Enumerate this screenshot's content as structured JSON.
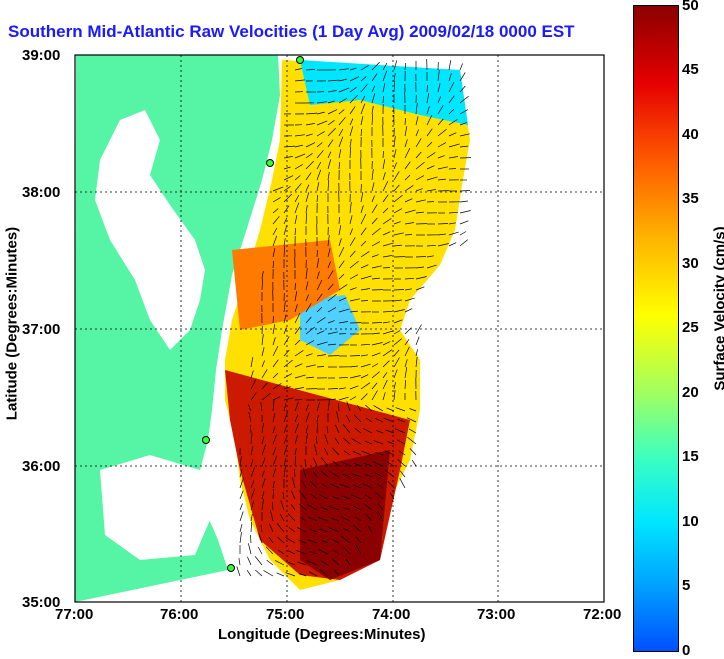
{
  "title": "Southern Mid-Atlantic Raw Velocities (1 Day Avg) 2009/02/18 0000 EST",
  "x_axis": {
    "label": "Longitude (Degrees:Minutes)",
    "ticks": [
      "77:00",
      "76:00",
      "75:00",
      "74:00",
      "73:00",
      "72:00"
    ]
  },
  "y_axis": {
    "label": "Latitude (Degrees:Minutes)",
    "ticks": [
      "39:00",
      "38:00",
      "37:00",
      "36:00",
      "35:00"
    ]
  },
  "colorbar": {
    "label": "Surface Velocity (cm/s)",
    "ticks": [
      "50",
      "45",
      "40",
      "35",
      "30",
      "25",
      "20",
      "15",
      "10",
      "5",
      "0"
    ]
  },
  "colors": {
    "land": "#55f5a5",
    "water": "#ffffff",
    "title": "#1a1aff"
  }
}
